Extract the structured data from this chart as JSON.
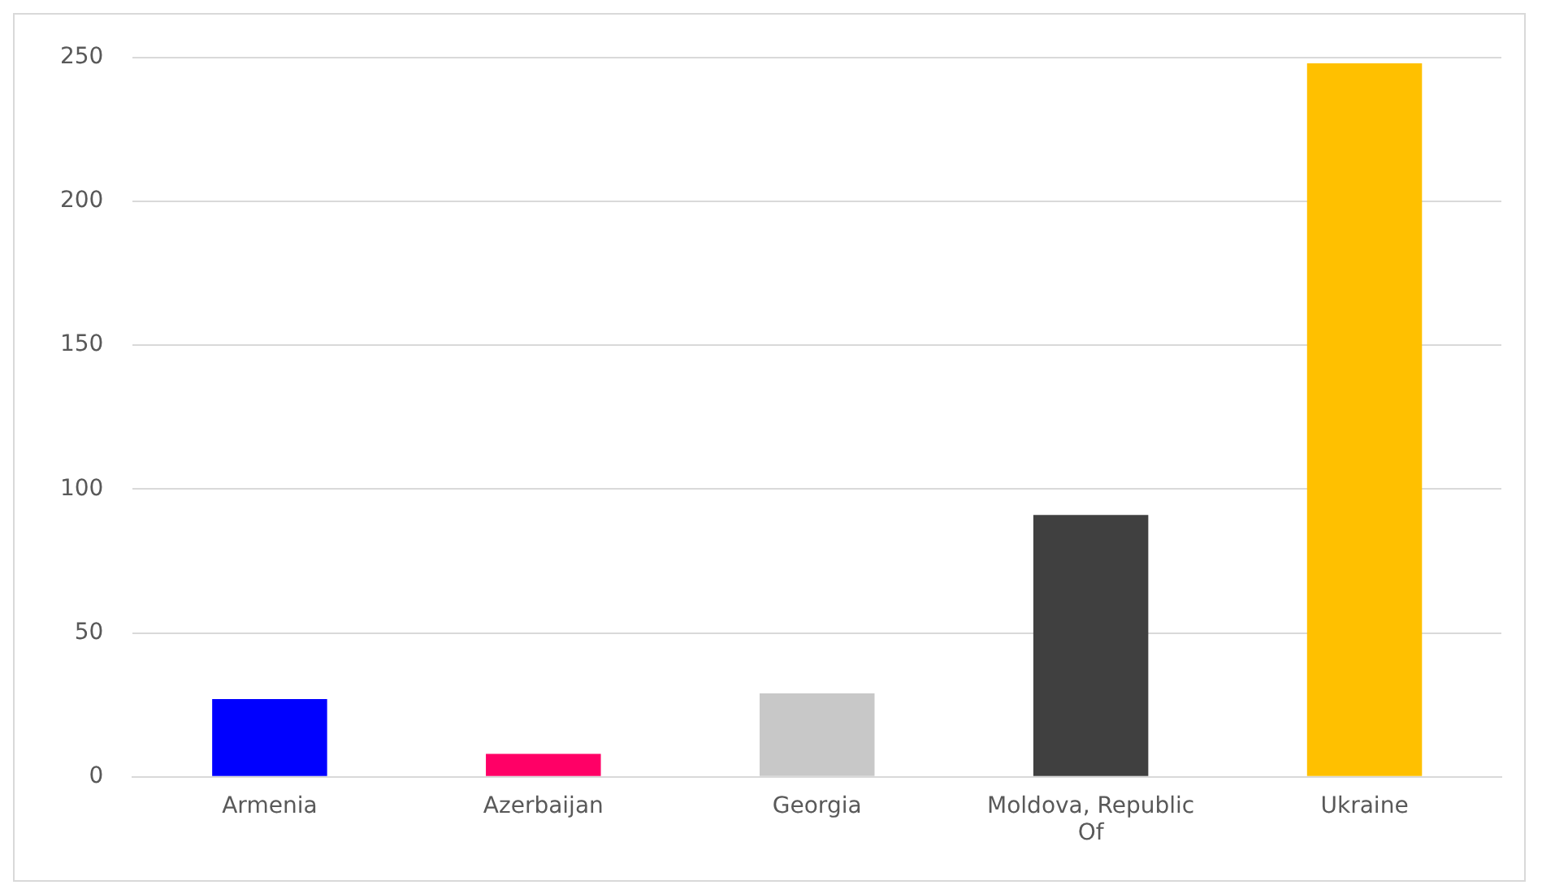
{
  "chart_data": {
    "type": "bar",
    "categories": [
      "Armenia",
      "Azerbaijan",
      "Georgia",
      "Moldova, Republic Of",
      "Ukraine"
    ],
    "values": [
      27,
      8,
      29,
      91,
      248
    ],
    "colors": [
      "#0000ff",
      "#ff0066",
      "#c8c8c8",
      "#404040",
      "#ffc000"
    ],
    "ylim": [
      0,
      250
    ],
    "yticks": [
      0,
      50,
      100,
      150,
      200,
      250
    ],
    "grid": "y",
    "legend": false
  }
}
